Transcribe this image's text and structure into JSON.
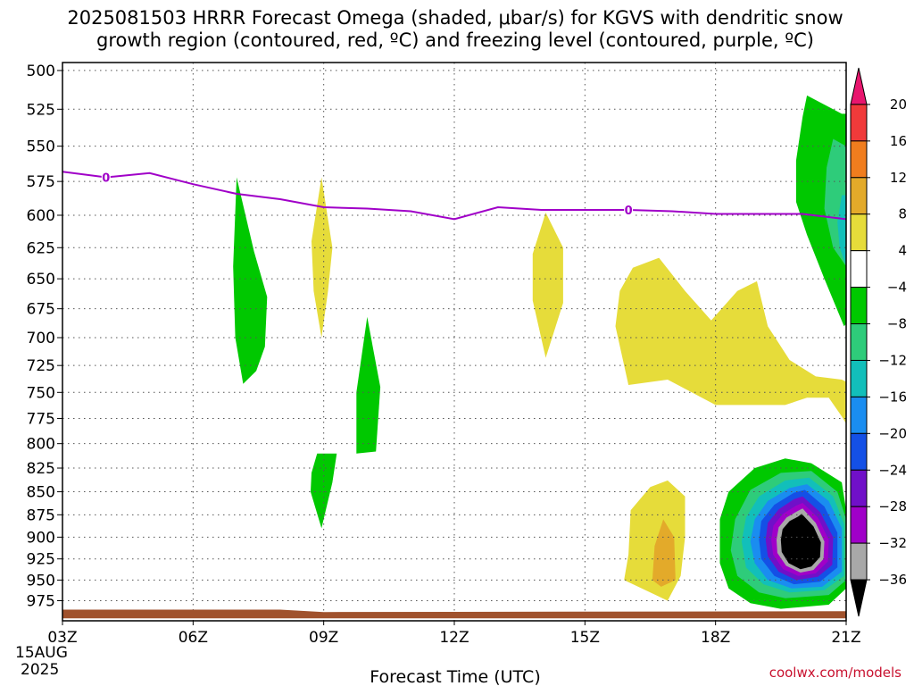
{
  "chart_data": {
    "type": "heatmap",
    "title_line1": "2025081503 HRRR Forecast Omega (shaded, μbar/s) for KGVS with dendritic snow",
    "title_line2": "growth region (contoured, red, ºC) and freezing level (contoured, purple, ºC)",
    "xlabel": "Forecast Time (UTC)",
    "x_ticks": [
      "03Z",
      "06Z",
      "09Z",
      "12Z",
      "15Z",
      "18Z",
      "21Z"
    ],
    "x_date_line1": "15AUG",
    "x_date_line2": "2025",
    "y_ticks": [
      500,
      525,
      550,
      575,
      600,
      625,
      650,
      675,
      700,
      725,
      750,
      775,
      800,
      825,
      850,
      875,
      900,
      925,
      950,
      975
    ],
    "y_axis": "pressure (hPa), log scale",
    "xlim": [
      3,
      21
    ],
    "ylim": [
      1000,
      495
    ],
    "grid": true,
    "colorbar": {
      "levels": [
        20,
        16,
        12,
        8,
        4,
        -4,
        -8,
        -12,
        -16,
        -20,
        -24,
        -28,
        -32,
        -36
      ],
      "colors": [
        "#e8166e",
        "#f03a3a",
        "#f07d1e",
        "#e3aa2a",
        "#e6dc3a",
        "#ffffff",
        "#00c800",
        "#2ecc7a",
        "#12bfba",
        "#1a8df0",
        "#1450e6",
        "#7010c8",
        "#a000c8",
        "#a8a8a8",
        "#000000"
      ]
    },
    "freezing_level": {
      "label": "0",
      "color": "#a000c8",
      "points": [
        [
          3,
          568
        ],
        [
          4,
          572
        ],
        [
          5,
          569
        ],
        [
          6,
          577
        ],
        [
          7,
          584
        ],
        [
          8,
          588
        ],
        [
          9,
          594
        ],
        [
          10,
          595
        ],
        [
          11,
          597
        ],
        [
          12,
          603
        ],
        [
          13,
          594
        ],
        [
          14,
          596
        ],
        [
          15,
          596
        ],
        [
          16,
          596
        ],
        [
          17,
          597
        ],
        [
          18,
          599
        ],
        [
          19,
          599
        ],
        [
          20,
          599
        ],
        [
          21,
          603
        ]
      ],
      "label_x": [
        4,
        16
      ]
    },
    "regions": [
      {
        "name": "green-plume-07z",
        "color": "#00c800",
        "points": [
          [
            7.0,
            572
          ],
          [
            7.4,
            628
          ],
          [
            7.7,
            665
          ],
          [
            7.65,
            708
          ],
          [
            7.45,
            730
          ],
          [
            7.15,
            742
          ],
          [
            6.97,
            700
          ],
          [
            6.92,
            640
          ]
        ]
      },
      {
        "name": "yellow-09z",
        "color": "#e6dc3a",
        "points": [
          [
            8.95,
            572
          ],
          [
            9.2,
            625
          ],
          [
            9.1,
            660
          ],
          [
            8.95,
            700
          ],
          [
            8.77,
            660
          ],
          [
            8.72,
            620
          ]
        ]
      },
      {
        "name": "green-10z",
        "color": "#00c800",
        "points": [
          [
            10.0,
            682
          ],
          [
            10.3,
            745
          ],
          [
            10.2,
            808
          ],
          [
            9.75,
            810
          ],
          [
            9.75,
            785
          ],
          [
            9.75,
            750
          ]
        ]
      },
      {
        "name": "green-09z-low",
        "color": "#00c800",
        "points": [
          [
            8.85,
            810
          ],
          [
            9.3,
            810
          ],
          [
            9.2,
            840
          ],
          [
            8.95,
            890
          ],
          [
            8.7,
            850
          ],
          [
            8.72,
            830
          ]
        ]
      },
      {
        "name": "yellow-14z",
        "color": "#e6dc3a",
        "points": [
          [
            14.1,
            598
          ],
          [
            14.5,
            625
          ],
          [
            14.5,
            670
          ],
          [
            14.1,
            718
          ],
          [
            13.8,
            668
          ],
          [
            13.8,
            630
          ]
        ]
      },
      {
        "name": "yellow-16-21z",
        "color": "#e6dc3a",
        "points": [
          [
            16.1,
            641
          ],
          [
            16.7,
            633
          ],
          [
            17.3,
            660
          ],
          [
            17.9,
            685
          ],
          [
            18.5,
            660
          ],
          [
            18.95,
            652
          ],
          [
            19.2,
            690
          ],
          [
            19.7,
            720
          ],
          [
            20.3,
            735
          ],
          [
            20.9,
            738
          ],
          [
            21,
            740
          ],
          [
            21,
            780
          ],
          [
            20.9,
            773
          ],
          [
            20.6,
            755
          ],
          [
            20.1,
            755
          ],
          [
            19.6,
            762
          ],
          [
            19.2,
            762
          ],
          [
            18.6,
            762
          ],
          [
            18.0,
            762
          ],
          [
            16.9,
            738
          ],
          [
            16.0,
            743
          ],
          [
            15.7,
            690
          ],
          [
            15.8,
            660
          ]
        ]
      },
      {
        "name": "yellow-17z-low",
        "color": "#e6dc3a",
        "points": [
          [
            16.9,
            838
          ],
          [
            17.3,
            855
          ],
          [
            17.3,
            900
          ],
          [
            17.2,
            945
          ],
          [
            16.9,
            975
          ],
          [
            16.5,
            965
          ],
          [
            15.9,
            950
          ],
          [
            16.0,
            920
          ],
          [
            16.05,
            870
          ],
          [
            16.5,
            845
          ]
        ]
      },
      {
        "name": "orange-17z",
        "color": "#e3aa2a",
        "points": [
          [
            16.8,
            880
          ],
          [
            17.05,
            900
          ],
          [
            17.08,
            950
          ],
          [
            16.75,
            958
          ],
          [
            16.55,
            950
          ],
          [
            16.6,
            910
          ]
        ]
      },
      {
        "name": "green-20z-upper-outer",
        "color": "#00c800",
        "points": [
          [
            20.1,
            516
          ],
          [
            20.9,
            528
          ],
          [
            21,
            528
          ],
          [
            21,
            688
          ],
          [
            20.95,
            690
          ],
          [
            20.5,
            650
          ],
          [
            20.1,
            615
          ],
          [
            19.85,
            590
          ],
          [
            19.85,
            560
          ],
          [
            20.0,
            530
          ]
        ]
      },
      {
        "name": "teal-20z-upper",
        "color": "#2ecc7a",
        "points": [
          [
            20.7,
            545
          ],
          [
            21,
            550
          ],
          [
            21,
            640
          ],
          [
            20.7,
            625
          ],
          [
            20.5,
            595
          ],
          [
            20.55,
            565
          ]
        ]
      },
      {
        "name": "cyan-20z-upper",
        "color": "#12bfba",
        "points": [
          [
            20.9,
            585
          ],
          [
            21,
            585
          ],
          [
            21,
            640
          ],
          [
            20.85,
            625
          ],
          [
            20.8,
            605
          ]
        ]
      },
      {
        "name": "ring-green",
        "color": "#00c800",
        "points": [
          [
            20.2,
            820
          ],
          [
            20.9,
            840
          ],
          [
            21,
            870
          ],
          [
            21,
            960
          ],
          [
            20.6,
            980
          ],
          [
            19.5,
            985
          ],
          [
            18.8,
            978
          ],
          [
            18.3,
            960
          ],
          [
            18.1,
            930
          ],
          [
            18.1,
            880
          ],
          [
            18.3,
            850
          ],
          [
            18.9,
            825
          ],
          [
            19.6,
            815
          ]
        ]
      },
      {
        "name": "ring-teal",
        "color": "#2ecc7a",
        "points": [
          [
            20.2,
            828
          ],
          [
            20.8,
            850
          ],
          [
            21,
            880
          ],
          [
            21,
            950
          ],
          [
            20.6,
            968
          ],
          [
            19.6,
            972
          ],
          [
            19.0,
            965
          ],
          [
            18.5,
            945
          ],
          [
            18.35,
            915
          ],
          [
            18.45,
            880
          ],
          [
            18.8,
            848
          ],
          [
            19.5,
            830
          ]
        ]
      },
      {
        "name": "ring-cyan",
        "color": "#12bfba",
        "points": [
          [
            20.15,
            835
          ],
          [
            20.7,
            855
          ],
          [
            20.95,
            885
          ],
          [
            20.95,
            945
          ],
          [
            20.5,
            962
          ],
          [
            19.7,
            965
          ],
          [
            19.1,
            955
          ],
          [
            18.7,
            935
          ],
          [
            18.6,
            905
          ],
          [
            18.7,
            878
          ],
          [
            19.0,
            855
          ],
          [
            19.6,
            838
          ]
        ]
      },
      {
        "name": "ring-lightblue",
        "color": "#1a8df0",
        "points": [
          [
            20.1,
            842
          ],
          [
            20.6,
            860
          ],
          [
            20.9,
            890
          ],
          [
            20.9,
            940
          ],
          [
            20.45,
            958
          ],
          [
            19.75,
            960
          ],
          [
            19.2,
            950
          ],
          [
            18.9,
            930
          ],
          [
            18.8,
            905
          ],
          [
            18.9,
            880
          ],
          [
            19.2,
            860
          ],
          [
            19.7,
            846
          ]
        ]
      },
      {
        "name": "ring-blue",
        "color": "#1450e6",
        "points": [
          [
            20.05,
            848
          ],
          [
            20.5,
            866
          ],
          [
            20.8,
            895
          ],
          [
            20.8,
            935
          ],
          [
            20.4,
            952
          ],
          [
            19.8,
            955
          ],
          [
            19.35,
            945
          ],
          [
            19.05,
            925
          ],
          [
            19.0,
            903
          ],
          [
            19.05,
            882
          ],
          [
            19.35,
            864
          ],
          [
            19.8,
            851
          ]
        ]
      },
      {
        "name": "ring-violet",
        "color": "#7010c8",
        "points": [
          [
            20.0,
            855
          ],
          [
            20.4,
            872
          ],
          [
            20.7,
            900
          ],
          [
            20.68,
            932
          ],
          [
            20.35,
            946
          ],
          [
            19.85,
            950
          ],
          [
            19.45,
            940
          ],
          [
            19.2,
            922
          ],
          [
            19.15,
            903
          ],
          [
            19.2,
            884
          ],
          [
            19.45,
            869
          ],
          [
            19.8,
            858
          ]
        ]
      },
      {
        "name": "ring-purple",
        "color": "#a000c8",
        "points": [
          [
            20.0,
            862
          ],
          [
            20.35,
            878
          ],
          [
            20.6,
            903
          ],
          [
            20.58,
            928
          ],
          [
            20.3,
            942
          ],
          [
            19.9,
            945
          ],
          [
            19.55,
            937
          ],
          [
            19.32,
            920
          ],
          [
            19.28,
            903
          ],
          [
            19.33,
            887
          ],
          [
            19.55,
            874
          ],
          [
            19.85,
            865
          ]
        ]
      },
      {
        "name": "ring-gray",
        "color": "#a8a8a8",
        "points": [
          [
            20.0,
            868
          ],
          [
            20.3,
            884
          ],
          [
            20.5,
            905
          ],
          [
            20.48,
            925
          ],
          [
            20.25,
            938
          ],
          [
            19.95,
            941
          ],
          [
            19.62,
            933
          ],
          [
            19.42,
            918
          ],
          [
            19.4,
            903
          ],
          [
            19.45,
            889
          ],
          [
            19.63,
            878
          ],
          [
            19.88,
            871
          ]
        ]
      },
      {
        "name": "core-black",
        "color": "#000000",
        "points": [
          [
            19.98,
            874
          ],
          [
            20.25,
            888
          ],
          [
            20.42,
            906
          ],
          [
            20.4,
            923
          ],
          [
            20.2,
            934
          ],
          [
            19.95,
            937
          ],
          [
            19.68,
            930
          ],
          [
            19.52,
            917
          ],
          [
            19.5,
            903
          ],
          [
            19.54,
            891
          ],
          [
            19.7,
            882
          ],
          [
            19.9,
            877
          ]
        ]
      }
    ],
    "surface_band": {
      "color": "#a0522d",
      "top": [
        [
          3,
          986
        ],
        [
          8,
          986
        ],
        [
          9,
          989
        ],
        [
          21,
          988
        ]
      ],
      "bottom": 997
    }
  },
  "credit": "coolwx.com/models"
}
